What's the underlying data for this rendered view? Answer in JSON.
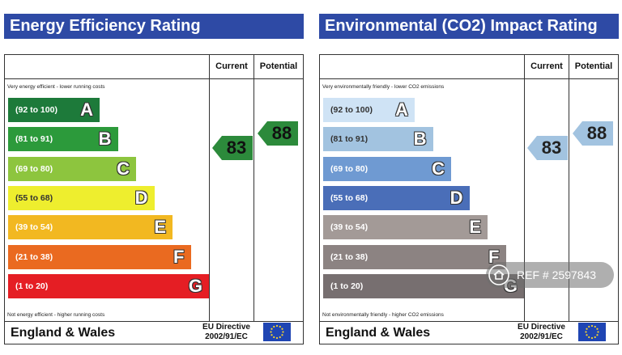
{
  "colors": {
    "title_bg": "#2e4aa5",
    "energy_bands": [
      "#1d7a3a",
      "#2c9a3b",
      "#8dc53e",
      "#eeee2e",
      "#f2b821",
      "#ea6a20",
      "#e51e24"
    ],
    "co2_bands": [
      "#cfe3f5",
      "#a2c3e0",
      "#6f9ad2",
      "#4a6eb8",
      "#a39a97",
      "#8c8382",
      "#776f70"
    ],
    "energy_arrow": "#2c8a3b",
    "co2_arrow": "#a2c3e0",
    "eu_flag_bg": "#1f45b3",
    "eu_flag_stars": "#f6d32d"
  },
  "energy_panel": {
    "title": "Energy Efficiency Rating",
    "header_current": "Current",
    "header_potential": "Potential",
    "top_note": "Very energy efficient - lower running costs",
    "bottom_note": "Not energy efficient - higher running costs",
    "footer_region": "England & Wales",
    "footer_directive": [
      "EU Directive",
      "2002/91/EC"
    ],
    "eu_flag_icon": "eu-flag-icon"
  },
  "co2_panel": {
    "title": "Environmental (CO2) Impact Rating",
    "header_current": "Current",
    "header_potential": "Potential",
    "top_note": "Very environmentally friendly - lower CO2 emissions",
    "bottom_note": "Not environmentally friendly - higher CO2 emissions",
    "footer_region": "England & Wales",
    "footer_directive": [
      "EU Directive",
      "2002/91/EC"
    ],
    "eu_flag_icon": "eu-flag-icon"
  },
  "watermark": {
    "text": "REF # 2597843",
    "icon": "home-icon"
  },
  "chart_data": [
    {
      "type": "bar",
      "title": "Energy Efficiency Rating",
      "categories": [
        "A",
        "B",
        "C",
        "D",
        "E",
        "F",
        "G"
      ],
      "ranges": [
        "(92 to 100)",
        "(81 to 91)",
        "(69 to 80)",
        "(55 to 68)",
        "(39 to 54)",
        "(21 to 38)",
        "(1 to 20)"
      ],
      "current": 83,
      "potential": 88
    },
    {
      "type": "bar",
      "title": "Environmental (CO2) Impact Rating",
      "categories": [
        "A",
        "B",
        "C",
        "D",
        "E",
        "F",
        "G"
      ],
      "ranges": [
        "(92 to 100)",
        "(81 to 91)",
        "(69 to 80)",
        "(55 to 68)",
        "(39 to 54)",
        "(21 to 38)",
        "(1 to 20)"
      ],
      "current": 83,
      "potential": 88
    }
  ]
}
